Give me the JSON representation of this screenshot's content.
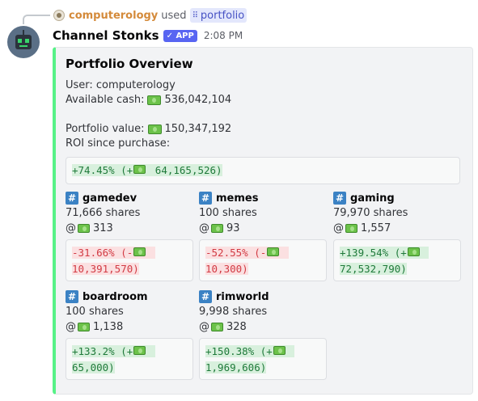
{
  "reply": {
    "user": "computerology",
    "used": "used",
    "command": "portfolio"
  },
  "header": {
    "author": "Channel Stonks",
    "badge": "✓ APP",
    "time": "2:08 PM"
  },
  "embed": {
    "title": "Portfolio Overview",
    "user_line": "User: computerology",
    "cash_label": "Available cash:",
    "cash_value": "536,042,104",
    "portfolio_label": "Portfolio value:",
    "portfolio_value": "150,347,192",
    "roi_label": "ROI since purchase:",
    "roi_value_prefix": "+74.45% (+",
    "roi_value_suffix": " 64,165,526)",
    "accent_color": "#57f287",
    "fields": [
      {
        "channel": "gamedev",
        "shares": "71,666 shares",
        "at": "@",
        "price": "313",
        "delta_prefix": "-31.66% (-",
        "delta_suffix": " 10,391,570)",
        "direction": "neg"
      },
      {
        "channel": "memes",
        "shares": "100 shares",
        "at": "@",
        "price": "93",
        "delta_prefix": "-52.55% (-",
        "delta_suffix": " 10,300)",
        "direction": "neg"
      },
      {
        "channel": "gaming",
        "shares": "79,970 shares",
        "at": "@",
        "price": "1,557",
        "delta_prefix": "+139.54% (+",
        "delta_suffix": " 72,532,790)",
        "direction": "pos"
      },
      {
        "channel": "boardroom",
        "shares": "100 shares",
        "at": "@",
        "price": "1,138",
        "delta_prefix": "+133.2% (+",
        "delta_suffix": " 65,000)",
        "direction": "pos"
      },
      {
        "channel": "rimworld",
        "shares": "9,998 shares",
        "at": "@",
        "price": "328",
        "delta_prefix": "+150.38% (+",
        "delta_suffix": " 1,969,606)",
        "direction": "pos"
      }
    ]
  },
  "icons": {
    "cash": "dollar-banknote-icon",
    "channel": "hashtag-channel-icon",
    "command": "slash-command-icon"
  }
}
